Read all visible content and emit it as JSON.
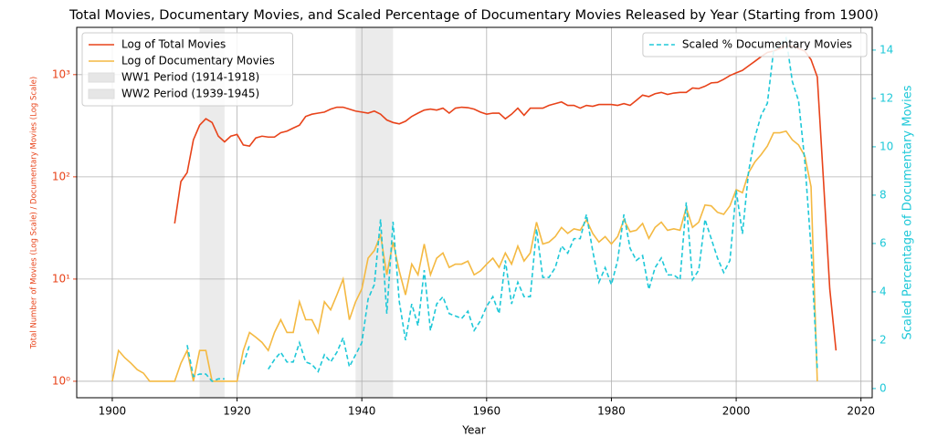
{
  "chart_data": {
    "type": "line",
    "title": "Total Movies, Documentary Movies, and Scaled Percentage of Documentary Movies Released by Year (Starting from 1900)",
    "x_label": "Year",
    "y_label": "Total Number of Movies (Log Scale) / Documentary Movies (Log Scale)",
    "y2_label": "Scaled Percentage of Documentary Movies",
    "xlim": [
      1894.3,
      2021.8
    ],
    "xticks": [
      1900,
      1920,
      1940,
      1960,
      1980,
      2000,
      2020
    ],
    "ylim": [
      0.69,
      2900
    ],
    "yscale": "log",
    "yticks": [
      {
        "value": 1,
        "label": "10⁰"
      },
      {
        "value": 10,
        "label": "10¹"
      },
      {
        "value": 100,
        "label": "10²"
      },
      {
        "value": 1000,
        "label": "10³"
      }
    ],
    "y_label_color": "#e8431a",
    "y2lim": [
      -0.38,
      14.94
    ],
    "y2ticks": [
      0,
      2,
      4,
      6,
      8,
      10,
      12,
      14
    ],
    "y2_label_color": "#1ec8d8",
    "grid": true,
    "legend": "upper left",
    "legend2": "upper right",
    "x": [
      1900,
      1901,
      1902,
      1903,
      1904,
      1905,
      1906,
      1907,
      1908,
      1909,
      1910,
      1911,
      1912,
      1913,
      1914,
      1915,
      1916,
      1917,
      1918,
      1919,
      1920,
      1921,
      1922,
      1923,
      1924,
      1925,
      1926,
      1927,
      1928,
      1929,
      1930,
      1931,
      1932,
      1933,
      1934,
      1935,
      1936,
      1937,
      1938,
      1939,
      1940,
      1941,
      1942,
      1943,
      1944,
      1945,
      1946,
      1947,
      1948,
      1949,
      1950,
      1951,
      1952,
      1953,
      1954,
      1955,
      1956,
      1957,
      1958,
      1959,
      1960,
      1961,
      1962,
      1963,
      1964,
      1965,
      1966,
      1967,
      1968,
      1969,
      1970,
      1971,
      1972,
      1973,
      1974,
      1975,
      1976,
      1977,
      1978,
      1979,
      1980,
      1981,
      1982,
      1983,
      1984,
      1985,
      1986,
      1987,
      1988,
      1989,
      1990,
      1991,
      1992,
      1993,
      1994,
      1995,
      1996,
      1997,
      1998,
      1999,
      2000,
      2001,
      2002,
      2003,
      2004,
      2005,
      2006,
      2007,
      2008,
      2009,
      2010,
      2011,
      2012,
      2013,
      2014,
      2015,
      2016
    ],
    "series": [
      {
        "name": "Log of Total Movies",
        "color": "#e8431a",
        "values": [
          null,
          null,
          null,
          null,
          null,
          null,
          null,
          null,
          null,
          null,
          35,
          90,
          110,
          230,
          320,
          370,
          340,
          250,
          220,
          250,
          260,
          205,
          200,
          240,
          250,
          245,
          245,
          270,
          280,
          300,
          320,
          390,
          410,
          420,
          430,
          460,
          480,
          480,
          460,
          440,
          430,
          420,
          440,
          410,
          360,
          340,
          330,
          350,
          390,
          420,
          450,
          460,
          450,
          470,
          420,
          470,
          480,
          475,
          460,
          430,
          410,
          420,
          420,
          370,
          410,
          470,
          400,
          470,
          470,
          470,
          500,
          520,
          540,
          500,
          500,
          470,
          500,
          490,
          510,
          510,
          510,
          500,
          520,
          500,
          560,
          630,
          610,
          650,
          670,
          640,
          660,
          670,
          670,
          740,
          730,
          770,
          830,
          840,
          900,
          980,
          1040,
          1100,
          1220,
          1350,
          1500,
          1650,
          1700,
          1800,
          1900,
          1900,
          1800,
          1700,
          1400,
          950,
          90,
          8,
          2
        ]
      },
      {
        "name": "Log of Documentary Movies",
        "color": "#f4b942",
        "values": [
          1,
          2,
          1.7,
          1.5,
          1.3,
          1.2,
          1,
          1,
          1,
          1,
          1,
          1.5,
          2,
          1,
          2,
          2,
          1,
          1,
          1,
          1,
          1,
          2,
          3,
          2.7,
          2.4,
          2,
          3,
          4,
          3,
          3,
          6,
          4,
          4,
          3,
          6,
          5,
          7,
          10,
          4,
          6,
          8,
          16,
          19,
          27,
          11,
          23,
          12,
          7,
          14,
          11,
          22,
          11,
          16,
          18,
          13,
          14,
          14,
          15,
          11,
          12,
          14,
          16,
          13,
          18,
          14,
          21,
          15,
          18,
          36,
          22,
          23,
          26,
          32,
          28,
          31,
          30,
          38,
          28,
          23,
          26,
          22,
          26,
          38,
          29,
          30,
          35,
          25,
          32,
          36,
          30,
          31,
          30,
          50,
          32,
          36,
          53,
          52,
          45,
          43,
          52,
          75,
          70,
          110,
          140,
          165,
          200,
          270,
          270,
          280,
          230,
          205,
          160,
          80,
          1,
          null,
          null,
          null
        ]
      },
      {
        "name": "Scaled % Documentary Movies",
        "color": "#1ec8d8",
        "axis": "y2",
        "dashed": true,
        "values": [
          null,
          null,
          null,
          null,
          null,
          null,
          null,
          null,
          null,
          null,
          null,
          null,
          1.8,
          0.5,
          0.6,
          0.6,
          0.3,
          0.4,
          0.4,
          null,
          null,
          1.0,
          1.8,
          null,
          null,
          0.8,
          1.2,
          1.5,
          1.1,
          1.1,
          1.9,
          1.1,
          1.0,
          0.7,
          1.4,
          1.1,
          1.5,
          2.1,
          0.9,
          1.4,
          1.9,
          3.7,
          4.3,
          7.0,
          3.1,
          6.9,
          3.6,
          2.0,
          3.5,
          2.6,
          4.9,
          2.4,
          3.5,
          3.8,
          3.1,
          3.0,
          2.9,
          3.2,
          2.4,
          2.8,
          3.4,
          3.8,
          3.1,
          5.3,
          3.5,
          4.4,
          3.8,
          3.8,
          6.6,
          4.6,
          4.6,
          5.0,
          5.9,
          5.6,
          6.2,
          6.2,
          7.2,
          5.7,
          4.4,
          5.0,
          4.3,
          5.3,
          7.2,
          5.8,
          5.3,
          5.5,
          4.1,
          5.0,
          5.4,
          4.7,
          4.7,
          4.5,
          7.7,
          4.5,
          4.9,
          7.0,
          6.2,
          5.4,
          4.8,
          5.3,
          8.2,
          6.4,
          9.0,
          10.4,
          11.3,
          11.8,
          14.0,
          14.2,
          14.5,
          12.7,
          11.9,
          9.4,
          5.8,
          0.8,
          null,
          null,
          null
        ]
      }
    ],
    "spans": [
      {
        "name": "WW1 Period (1914-1918)",
        "start": 1914,
        "end": 1918,
        "color": "#e6e6e6"
      },
      {
        "name": "WW2 Period (1939-1945)",
        "start": 1939,
        "end": 1945,
        "color": "#e6e6e6"
      }
    ]
  }
}
